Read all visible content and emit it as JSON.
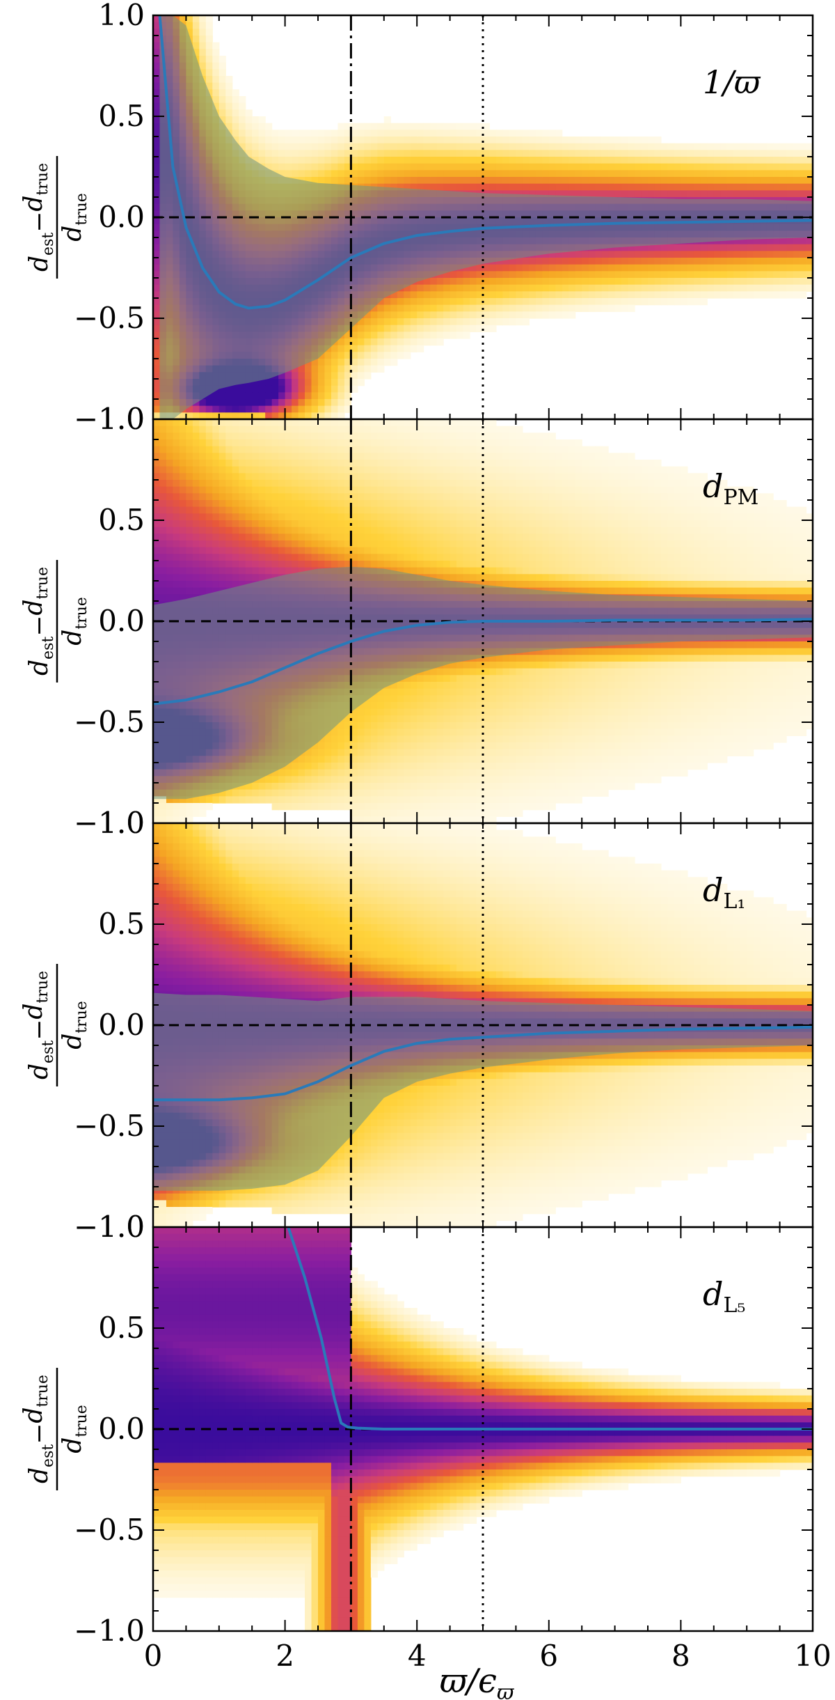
{
  "chart_data": {
    "type": "heatmap",
    "xlim": [
      0,
      10
    ],
    "ylim": [
      -1.0,
      1.0
    ],
    "x_ticks": [
      0,
      2,
      4,
      6,
      8,
      10
    ],
    "x_tick_labels": [
      "0",
      "2",
      "4",
      "6",
      "8",
      "10"
    ],
    "y_ticks": [
      -1.0,
      -0.5,
      0.0,
      0.5,
      1.0
    ],
    "y_tick_labels": [
      "−1.0",
      "−0.5",
      "0.0",
      "0.5",
      "1.0"
    ],
    "xlabel": "ϖ/ϵϖ",
    "ylabel": "(d_est − d_true)/d_true",
    "ylabel_parts": {
      "num_main": "d",
      "num_sub": "est",
      "minus": "−",
      "num_main2": "d",
      "num_sub2": "true",
      "den_main": "d",
      "den_sub": "true"
    },
    "xlabel_parts": {
      "main": "ϖ/ϵ",
      "sub": "ϖ"
    },
    "vlines": [
      {
        "x": 3,
        "style": "dashdot"
      },
      {
        "x": 5,
        "style": "dotted"
      }
    ],
    "hline": {
      "y": 0,
      "style": "dashed"
    },
    "grid": false,
    "colors": {
      "median_line": "#2a7ab9",
      "band": "rgba(110,150,130,0.55)",
      "cmap": [
        "#ffffff",
        "#ffd23a",
        "#f5a623",
        "#e8583a",
        "#c93b7c",
        "#8a1ea0",
        "#3a0c9c"
      ]
    },
    "panels": [
      {
        "label": "1/ϖ",
        "label_parts": {
          "main": "1/ϖ",
          "sub": ""
        },
        "x": [
          0.1,
          0.3,
          0.5,
          0.75,
          1.0,
          1.25,
          1.45,
          1.75,
          2.0,
          2.5,
          3.0,
          3.5,
          4.0,
          4.5,
          5.0,
          6.0,
          7.0,
          8.0,
          9.0,
          10.0
        ],
        "median": [
          1.0,
          0.25,
          -0.05,
          -0.25,
          -0.37,
          -0.43,
          -0.45,
          -0.44,
          -0.41,
          -0.31,
          -0.2,
          -0.13,
          -0.09,
          -0.07,
          -0.055,
          -0.04,
          -0.03,
          -0.025,
          -0.02,
          -0.015
        ],
        "band_upper": [
          1.0,
          1.0,
          0.95,
          0.7,
          0.5,
          0.38,
          0.3,
          0.24,
          0.2,
          0.17,
          0.16,
          0.15,
          0.14,
          0.13,
          0.12,
          0.11,
          0.1,
          0.09,
          0.09,
          0.08
        ],
        "band_lower": [
          -1.0,
          -1.0,
          -0.95,
          -0.9,
          -0.85,
          -0.83,
          -0.82,
          -0.8,
          -0.77,
          -0.7,
          -0.55,
          -0.4,
          -0.32,
          -0.27,
          -0.23,
          -0.18,
          -0.15,
          -0.13,
          -0.11,
          -0.1
        ]
      },
      {
        "label": "dPM",
        "label_parts": {
          "main": "d",
          "sub": "PM"
        },
        "x": [
          0.0,
          0.5,
          1.0,
          1.5,
          2.0,
          2.5,
          3.0,
          3.5,
          4.0,
          4.5,
          5.0,
          6.0,
          7.0,
          8.0,
          9.0,
          10.0
        ],
        "median": [
          -0.41,
          -0.39,
          -0.35,
          -0.3,
          -0.23,
          -0.16,
          -0.1,
          -0.05,
          -0.02,
          -0.005,
          0.0,
          0.0,
          0.005,
          0.005,
          0.005,
          0.01
        ],
        "band_upper": [
          0.08,
          0.11,
          0.15,
          0.19,
          0.23,
          0.26,
          0.27,
          0.26,
          0.23,
          0.2,
          0.18,
          0.15,
          0.13,
          0.12,
          0.11,
          0.1
        ],
        "band_lower": [
          -0.88,
          -0.88,
          -0.85,
          -0.8,
          -0.72,
          -0.6,
          -0.45,
          -0.33,
          -0.26,
          -0.21,
          -0.18,
          -0.14,
          -0.12,
          -0.1,
          -0.09,
          -0.08
        ]
      },
      {
        "label": "dL1",
        "label_parts": {
          "main": "d",
          "sub": "L₁"
        },
        "x": [
          0.0,
          0.5,
          1.0,
          1.5,
          2.0,
          2.5,
          3.0,
          3.5,
          4.0,
          4.5,
          5.0,
          6.0,
          7.0,
          8.0,
          9.0,
          10.0
        ],
        "median": [
          -0.37,
          -0.37,
          -0.37,
          -0.36,
          -0.34,
          -0.28,
          -0.2,
          -0.13,
          -0.09,
          -0.07,
          -0.06,
          -0.04,
          -0.03,
          -0.02,
          -0.015,
          -0.01
        ],
        "band_upper": [
          0.16,
          0.15,
          0.15,
          0.14,
          0.13,
          0.12,
          0.14,
          0.14,
          0.14,
          0.13,
          0.12,
          0.11,
          0.1,
          0.09,
          0.08,
          0.07
        ],
        "band_lower": [
          -0.82,
          -0.82,
          -0.82,
          -0.81,
          -0.79,
          -0.72,
          -0.55,
          -0.36,
          -0.28,
          -0.24,
          -0.21,
          -0.17,
          -0.14,
          -0.12,
          -0.11,
          -0.1
        ]
      },
      {
        "label": "dL5",
        "label_parts": {
          "main": "d",
          "sub": "L₅"
        },
        "x": [
          2.05,
          2.3,
          2.55,
          2.75,
          2.85,
          2.95,
          3.1,
          3.5,
          4.0,
          5.0,
          6.0,
          7.0,
          8.0,
          9.0,
          10.0
        ],
        "median": [
          1.0,
          0.75,
          0.45,
          0.15,
          0.03,
          0.01,
          0.005,
          0.0,
          0.0,
          0.0,
          0.0,
          0.0,
          0.0,
          0.0,
          0.0
        ],
        "band_upper": [],
        "band_lower": []
      }
    ]
  }
}
